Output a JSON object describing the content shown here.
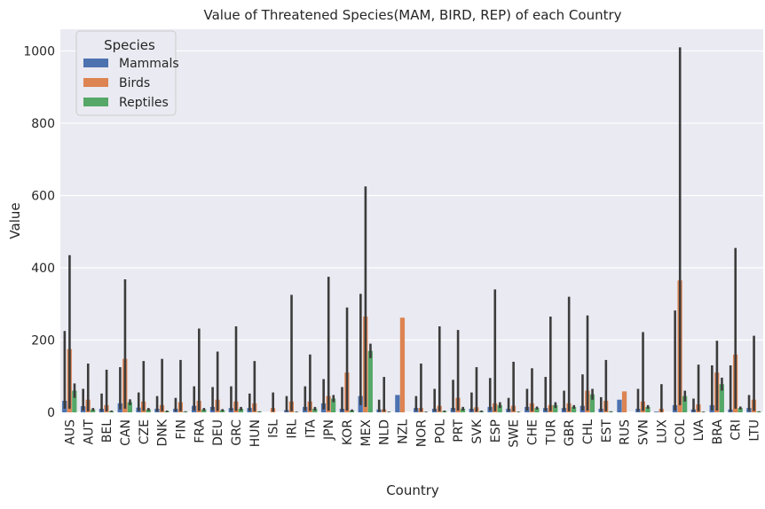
{
  "chart_data": {
    "type": "bar",
    "title": "Value of Threatened Species(MAM, BIRD, REP) of each Country",
    "xlabel": "Country",
    "ylabel": "Value",
    "ylim": [
      0,
      1060
    ],
    "yticks": [
      0,
      200,
      400,
      600,
      800,
      1000
    ],
    "grid": true,
    "background": "#EAEAF2",
    "legend": {
      "title": "Species",
      "placement": "top-left"
    },
    "categories": [
      "AUS",
      "AUT",
      "BEL",
      "CAN",
      "CZE",
      "DNK",
      "FIN",
      "FRA",
      "DEU",
      "GRC",
      "HUN",
      "ISL",
      "IRL",
      "ITA",
      "JPN",
      "KOR",
      "MEX",
      "NLD",
      "NZL",
      "NOR",
      "POL",
      "PRT",
      "SVK",
      "ESP",
      "SWE",
      "CHE",
      "TUR",
      "GBR",
      "CHL",
      "EST",
      "RUS",
      "SVN",
      "LUX",
      "COL",
      "LVA",
      "BRA",
      "CRI",
      "LTU"
    ],
    "series": [
      {
        "name": "Mammals",
        "color": "#4C72B0",
        "values": [
          32,
          17,
          10,
          25,
          13,
          10,
          10,
          18,
          15,
          12,
          12,
          0,
          6,
          15,
          25,
          10,
          45,
          8,
          48,
          12,
          10,
          12,
          10,
          15,
          10,
          15,
          12,
          12,
          18,
          10,
          35,
          10,
          2,
          20,
          8,
          20,
          8,
          12
        ],
        "ci_low": [
          10,
          5,
          3,
          8,
          4,
          3,
          3,
          5,
          5,
          4,
          4,
          0,
          2,
          5,
          8,
          3,
          20,
          2,
          48,
          4,
          3,
          4,
          3,
          5,
          3,
          5,
          4,
          4,
          5,
          3,
          35,
          3,
          0,
          5,
          2,
          5,
          2,
          4
        ],
        "ci_high": [
          225,
          65,
          52,
          125,
          55,
          45,
          40,
          72,
          70,
          72,
          52,
          0,
          45,
          72,
          92,
          70,
          328,
          35,
          48,
          45,
          65,
          90,
          55,
          95,
          40,
          65,
          98,
          60,
          105,
          42,
          35,
          65,
          0,
          282,
          38,
          130,
          130,
          48
        ]
      },
      {
        "name": "Birds",
        "color": "#DD8452",
        "values": [
          175,
          35,
          20,
          148,
          30,
          20,
          28,
          32,
          35,
          30,
          25,
          12,
          30,
          30,
          45,
          110,
          265,
          8,
          262,
          12,
          18,
          40,
          14,
          25,
          18,
          25,
          20,
          25,
          60,
          32,
          58,
          30,
          10,
          365,
          22,
          110,
          160,
          35
        ],
        "ci_low": [
          10,
          3,
          3,
          10,
          4,
          3,
          3,
          4,
          4,
          4,
          3,
          2,
          3,
          4,
          5,
          5,
          15,
          2,
          262,
          2,
          3,
          5,
          2,
          3,
          3,
          3,
          3,
          3,
          5,
          3,
          58,
          4,
          1,
          20,
          3,
          5,
          10,
          4
        ],
        "ci_high": [
          435,
          135,
          118,
          368,
          142,
          148,
          145,
          232,
          168,
          238,
          142,
          55,
          325,
          160,
          375,
          290,
          625,
          98,
          262,
          135,
          238,
          228,
          125,
          340,
          140,
          122,
          265,
          320,
          268,
          145,
          58,
          222,
          78,
          1010,
          132,
          198,
          455,
          212
        ]
      },
      {
        "name": "Reptiles",
        "color": "#55A868",
        "values": [
          60,
          8,
          3,
          28,
          8,
          3,
          2,
          8,
          6,
          10,
          2,
          0,
          1,
          10,
          38,
          5,
          170,
          1,
          0,
          1,
          3,
          10,
          3,
          20,
          1,
          12,
          20,
          15,
          50,
          2,
          0,
          15,
          0,
          45,
          1,
          78,
          12,
          2
        ],
        "ci_low": [
          40,
          4,
          1,
          20,
          4,
          1,
          1,
          4,
          3,
          5,
          1,
          0,
          0,
          5,
          28,
          2,
          150,
          0,
          0,
          0,
          1,
          5,
          1,
          12,
          0,
          8,
          12,
          10,
          35,
          1,
          0,
          10,
          0,
          30,
          0,
          60,
          8,
          1
        ],
        "ci_high": [
          80,
          12,
          5,
          36,
          12,
          5,
          3,
          12,
          9,
          15,
          3,
          0,
          2,
          15,
          48,
          8,
          190,
          2,
          0,
          2,
          5,
          15,
          5,
          28,
          2,
          16,
          28,
          20,
          65,
          3,
          0,
          20,
          0,
          60,
          2,
          96,
          16,
          3
        ]
      }
    ]
  }
}
